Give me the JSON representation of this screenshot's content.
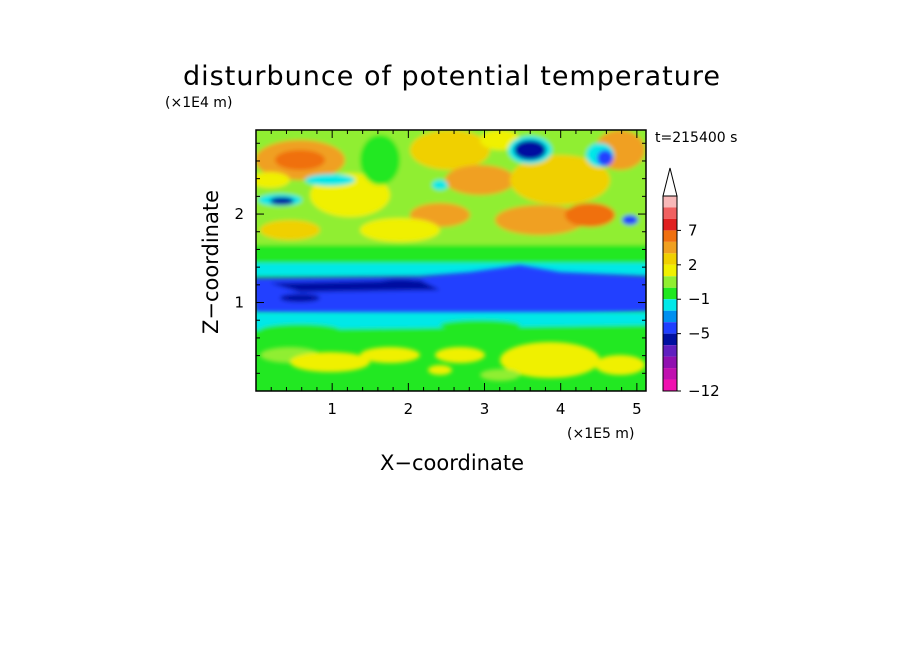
{
  "chart_data": {
    "type": "heatmap",
    "title": "disturbunce of potential temperature",
    "xlabel": "X−coordinate",
    "ylabel": "Z−coordinate",
    "x_unit": "(×1E5 m)",
    "y_unit": "(×1E4 m)",
    "time_label": "t=215400 s",
    "xlim": [
      0,
      5.12
    ],
    "ylim": [
      0,
      2.95
    ],
    "x_ticks": [
      "1",
      "2",
      "3",
      "4",
      "5"
    ],
    "y_ticks": [
      "1",
      "2"
    ],
    "colorbar": {
      "labels": [
        "7",
        "2",
        "−1",
        "−5",
        "−12"
      ],
      "colors": [
        "#f8b8b8",
        "#f06060",
        "#e02020",
        "#f07010",
        "#f0a020",
        "#f0d000",
        "#f0f000",
        "#90ee30",
        "#20e820",
        "#00e8e8",
        "#0090f0",
        "#2040ff",
        "#0010a0",
        "#6020c0",
        "#9010b0",
        "#c010b0",
        "#f010b0"
      ],
      "extend_top": true
    },
    "field": {
      "x_range": [
        0,
        5.12
      ],
      "z_range": [
        0,
        2.95
      ],
      "min": -12,
      "max": 9,
      "description_levels": [
        -12,
        -5,
        -1,
        2,
        7
      ]
    },
    "grid": false
  }
}
